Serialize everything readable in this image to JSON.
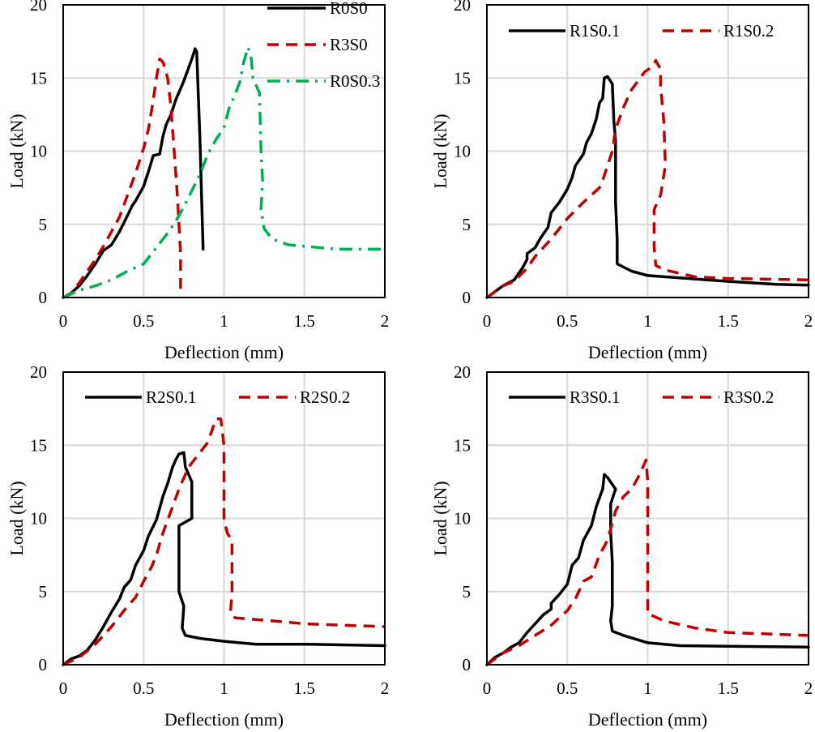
{
  "chart_data": [
    {
      "type": "line",
      "xlabel": "Deflection  (mm)",
      "ylabel": "Load (kN)",
      "xlim": [
        0,
        2
      ],
      "ylim": [
        0,
        20
      ],
      "xticks": [
        "0",
        "0.5",
        "1",
        "1.5",
        "2"
      ],
      "yticks": [
        "0",
        "5",
        "10",
        "15",
        "20"
      ],
      "grid": true,
      "legend": "top-right-stacked",
      "series": [
        {
          "name": "R0S0",
          "color": "#000000",
          "style": "solid",
          "x": [
            0,
            0.05,
            0.1,
            0.15,
            0.2,
            0.25,
            0.3,
            0.35,
            0.4,
            0.43,
            0.45,
            0.5,
            0.53,
            0.56,
            0.6,
            0.62,
            0.64,
            0.67,
            0.7,
            0.75,
            0.8,
            0.82,
            0.83,
            0.85,
            0.87
          ],
          "y": [
            0,
            0.3,
            0.8,
            1.5,
            2.3,
            3.2,
            3.6,
            4.5,
            5.6,
            6.3,
            6.6,
            7.6,
            8.6,
            9.7,
            9.8,
            11.0,
            11.8,
            12.5,
            13.5,
            14.8,
            16.3,
            17.0,
            16.8,
            11.0,
            3.3
          ]
        },
        {
          "name": "R3S0",
          "color": "#c00000",
          "style": "dash",
          "x": [
            0,
            0.05,
            0.1,
            0.15,
            0.2,
            0.25,
            0.3,
            0.35,
            0.4,
            0.45,
            0.5,
            0.53,
            0.56,
            0.58,
            0.6,
            0.62,
            0.65,
            0.67,
            0.69,
            0.71,
            0.72,
            0.73,
            0.73
          ],
          "y": [
            0,
            0.3,
            1.0,
            1.8,
            2.6,
            3.5,
            4.5,
            5.5,
            7.0,
            8.5,
            10.2,
            11.5,
            13.5,
            15.0,
            16.3,
            16.1,
            15.0,
            13.0,
            10.0,
            7.0,
            5.0,
            3.0,
            0.6
          ]
        },
        {
          "name": "R0S0.3",
          "color": "#00b050",
          "style": "dashdot",
          "x": [
            0,
            0.1,
            0.2,
            0.3,
            0.4,
            0.5,
            0.55,
            0.6,
            0.65,
            0.7,
            0.75,
            0.8,
            0.85,
            0.9,
            0.95,
            1.0,
            1.03,
            1.07,
            1.1,
            1.12,
            1.15,
            1.17,
            1.18,
            1.22,
            1.23,
            1.24,
            1.23,
            1.25,
            1.3,
            1.4,
            1.5,
            1.7,
            2.0
          ],
          "y": [
            0,
            0.5,
            0.8,
            1.2,
            1.8,
            2.3,
            3.0,
            3.7,
            4.4,
            5.2,
            6.2,
            7.3,
            8.4,
            9.8,
            10.8,
            11.6,
            12.9,
            13.9,
            14.8,
            16.0,
            17.1,
            16.3,
            15.0,
            14.0,
            10.0,
            8.0,
            6.0,
            4.7,
            4.0,
            3.6,
            3.5,
            3.3,
            3.3
          ]
        }
      ]
    },
    {
      "type": "line",
      "xlabel": "Deflection  (mm)",
      "ylabel": "Load (kN)",
      "xlim": [
        0,
        2
      ],
      "ylim": [
        0,
        20
      ],
      "xticks": [
        "0",
        "0.5",
        "1",
        "1.5",
        "2"
      ],
      "yticks": [
        "0",
        "5",
        "10",
        "15",
        "20"
      ],
      "grid": true,
      "legend": "top",
      "series": [
        {
          "name": "R1S0.1",
          "color": "#000000",
          "style": "solid",
          "x": [
            0,
            0.05,
            0.1,
            0.17,
            0.22,
            0.25,
            0.25,
            0.3,
            0.33,
            0.38,
            0.4,
            0.45,
            0.5,
            0.53,
            0.55,
            0.6,
            0.62,
            0.65,
            0.68,
            0.7,
            0.72,
            0.73,
            0.75,
            0.78,
            0.79,
            0.8,
            0.8,
            0.81,
            0.81,
            0.9,
            1.0,
            1.5,
            1.8,
            2.0
          ],
          "y": [
            0,
            0.4,
            0.8,
            1.2,
            2.0,
            2.6,
            3.0,
            3.4,
            4.0,
            4.8,
            5.8,
            6.5,
            7.4,
            8.2,
            9.0,
            9.8,
            10.6,
            11.2,
            12.2,
            13.3,
            13.6,
            15.0,
            15.1,
            14.6,
            12.0,
            10.8,
            6.5,
            4.0,
            2.3,
            1.8,
            1.5,
            1.1,
            0.9,
            0.85
          ]
        },
        {
          "name": "R1S0.2",
          "color": "#c00000",
          "style": "dash",
          "x": [
            0,
            0.1,
            0.17,
            0.25,
            0.3,
            0.4,
            0.5,
            0.6,
            0.7,
            0.72,
            0.75,
            0.78,
            0.8,
            0.85,
            0.9,
            0.98,
            1.03,
            1.05,
            1.08,
            1.08,
            1.1,
            1.11,
            1.08,
            1.04,
            1.04,
            1.05,
            1.1,
            1.3,
            1.5,
            2.0
          ],
          "y": [
            0,
            0.8,
            1.1,
            2.0,
            2.8,
            4.0,
            5.4,
            6.5,
            7.5,
            8.0,
            9.0,
            10.0,
            11.5,
            13.0,
            14.2,
            15.4,
            15.8,
            16.2,
            15.6,
            14.5,
            12.0,
            9.0,
            7.0,
            6.0,
            3.5,
            2.2,
            1.9,
            1.4,
            1.3,
            1.2
          ]
        }
      ]
    },
    {
      "type": "line",
      "xlabel": "Deflection  (mm)",
      "ylabel": "Load (kN)",
      "xlim": [
        0,
        2
      ],
      "ylim": [
        0,
        20
      ],
      "xticks": [
        "0",
        "0.5",
        "1",
        "1.5",
        "2"
      ],
      "yticks": [
        "0",
        "5",
        "10",
        "15",
        "20"
      ],
      "grid": true,
      "legend": "top",
      "series": [
        {
          "name": "R2S0.1",
          "color": "#000000",
          "style": "solid",
          "x": [
            0,
            0.05,
            0.1,
            0.15,
            0.2,
            0.25,
            0.3,
            0.35,
            0.38,
            0.42,
            0.45,
            0.5,
            0.53,
            0.58,
            0.62,
            0.65,
            0.68,
            0.7,
            0.72,
            0.75,
            0.76,
            0.8,
            0.8,
            0.72,
            0.72,
            0.72,
            0.75,
            0.74,
            0.76,
            0.85,
            1.0,
            1.2,
            1.5,
            2.0
          ],
          "y": [
            0,
            0.4,
            0.6,
            1.0,
            1.7,
            2.6,
            3.6,
            4.5,
            5.3,
            5.8,
            6.8,
            7.8,
            8.8,
            9.9,
            11.5,
            12.4,
            13.5,
            14.0,
            14.4,
            14.5,
            13.5,
            12.5,
            10.0,
            9.5,
            7.5,
            5.0,
            4.0,
            2.5,
            2.0,
            1.8,
            1.6,
            1.4,
            1.4,
            1.3
          ]
        },
        {
          "name": "R2S0.2",
          "color": "#c00000",
          "style": "dash",
          "x": [
            0,
            0.1,
            0.2,
            0.3,
            0.4,
            0.45,
            0.5,
            0.55,
            0.58,
            0.62,
            0.68,
            0.72,
            0.78,
            0.85,
            0.9,
            0.95,
            0.98,
            1.0,
            1.0,
            1.02,
            1.05,
            1.05,
            1.04,
            1.07,
            1.3,
            1.5,
            2.0
          ],
          "y": [
            0,
            0.5,
            1.4,
            2.6,
            4.0,
            4.6,
            5.7,
            6.7,
            7.5,
            9.0,
            10.8,
            12.0,
            13.5,
            14.5,
            15.2,
            16.8,
            16.8,
            15.0,
            10.0,
            9.0,
            8.5,
            5.0,
            3.5,
            3.2,
            3.0,
            2.8,
            2.6
          ]
        }
      ]
    },
    {
      "type": "line",
      "xlabel": "Deflection  (mm)",
      "ylabel": "Load (kN)",
      "xlim": [
        0,
        2
      ],
      "ylim": [
        0,
        20
      ],
      "xticks": [
        "0",
        "0.5",
        "1",
        "1.5",
        "2"
      ],
      "yticks": [
        "0",
        "5",
        "10",
        "15",
        "20"
      ],
      "grid": true,
      "legend": "top",
      "series": [
        {
          "name": "R3S0.1",
          "color": "#000000",
          "style": "solid",
          "x": [
            0,
            0.05,
            0.1,
            0.15,
            0.2,
            0.25,
            0.3,
            0.35,
            0.4,
            0.4,
            0.45,
            0.5,
            0.53,
            0.57,
            0.6,
            0.65,
            0.68,
            0.72,
            0.73,
            0.75,
            0.8,
            0.77,
            0.77,
            0.78,
            0.78,
            0.77,
            0.78,
            0.85,
            1.0,
            1.2,
            2.0
          ],
          "y": [
            0,
            0.5,
            0.8,
            1.2,
            1.5,
            2.2,
            2.8,
            3.4,
            3.8,
            4.2,
            4.8,
            5.5,
            6.8,
            7.3,
            8.5,
            9.5,
            10.8,
            12.0,
            13.0,
            12.8,
            12.0,
            11.0,
            9.0,
            7.0,
            4.0,
            3.0,
            2.3,
            2.0,
            1.5,
            1.3,
            1.2
          ]
        },
        {
          "name": "R3S0.2",
          "color": "#c00000",
          "style": "dash",
          "x": [
            0,
            0.1,
            0.2,
            0.3,
            0.4,
            0.45,
            0.5,
            0.55,
            0.6,
            0.65,
            0.7,
            0.75,
            0.8,
            0.85,
            0.9,
            0.95,
            0.99,
            1.0,
            1.0,
            1.0,
            1.0,
            1.0,
            1.1,
            1.3,
            1.5,
            2.0
          ],
          "y": [
            0,
            0.8,
            1.3,
            2.0,
            2.7,
            3.2,
            3.7,
            4.5,
            5.7,
            6.0,
            7.5,
            8.5,
            10.5,
            11.5,
            12.0,
            13.0,
            14.0,
            12.5,
            10.0,
            7.0,
            5.5,
            3.5,
            3.0,
            2.5,
            2.2,
            2.0
          ]
        }
      ]
    }
  ]
}
